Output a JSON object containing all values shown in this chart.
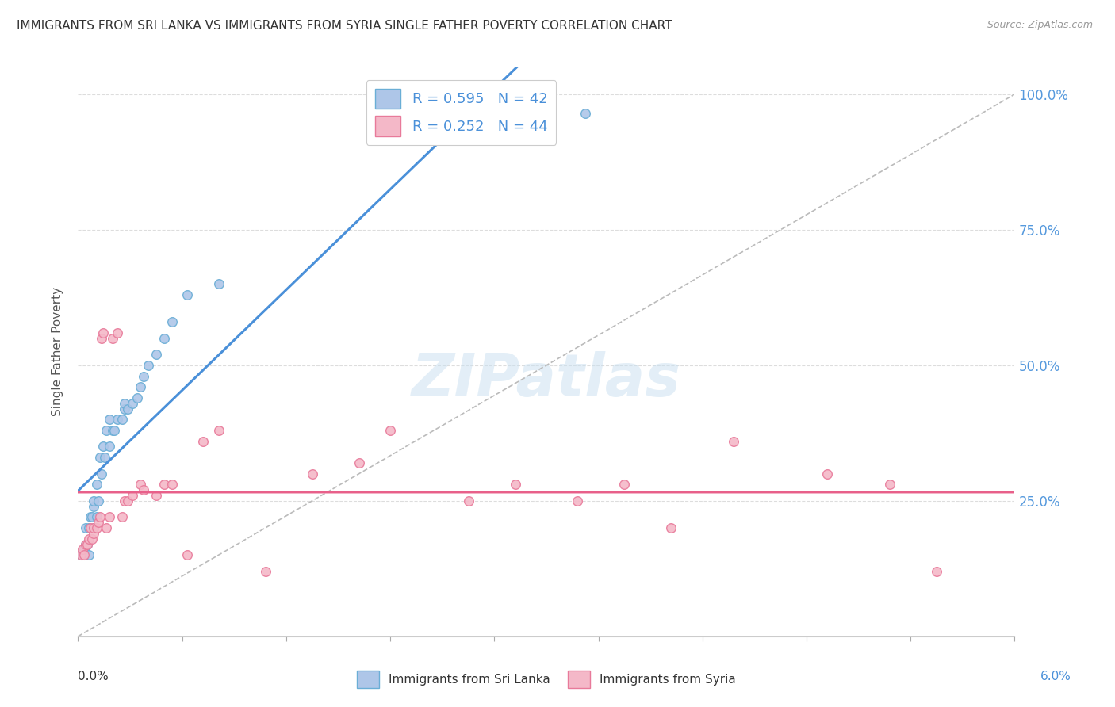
{
  "title": "IMMIGRANTS FROM SRI LANKA VS IMMIGRANTS FROM SYRIA SINGLE FATHER POVERTY CORRELATION CHART",
  "source": "Source: ZipAtlas.com",
  "ylabel": "Single Father Poverty",
  "legend1_r": "R = 0.595",
  "legend1_n": "N = 42",
  "legend2_r": "R = 0.252",
  "legend2_n": "N = 44",
  "legend_bottom1": "Immigrants from Sri Lanka",
  "legend_bottom2": "Immigrants from Syria",
  "color_sri_lanka_fill": "#aec6e8",
  "color_sri_lanka_edge": "#6aaed6",
  "color_syria_fill": "#f4b8c8",
  "color_syria_edge": "#e87a9a",
  "color_sri_lanka_line": "#4a90d9",
  "color_syria_line": "#e8608a",
  "color_diagonal": "#bbbbbb",
  "watermark": "ZIPatlas",
  "x_min": 0.0,
  "x_max": 0.06,
  "y_min": 0.0,
  "y_max": 1.05,
  "sri_lanka_x": [
    0.0002,
    0.0003,
    0.0004,
    0.0004,
    0.0005,
    0.0005,
    0.0006,
    0.0007,
    0.0007,
    0.0008,
    0.0009,
    0.001,
    0.001,
    0.001,
    0.0012,
    0.0012,
    0.0013,
    0.0014,
    0.0015,
    0.0016,
    0.0017,
    0.0018,
    0.002,
    0.002,
    0.0022,
    0.0023,
    0.0025,
    0.0028,
    0.003,
    0.003,
    0.0032,
    0.0035,
    0.0038,
    0.004,
    0.0042,
    0.0045,
    0.005,
    0.0055,
    0.006,
    0.007,
    0.009,
    0.0325
  ],
  "sri_lanka_y": [
    0.15,
    0.15,
    0.15,
    0.16,
    0.17,
    0.2,
    0.17,
    0.15,
    0.2,
    0.22,
    0.22,
    0.2,
    0.24,
    0.25,
    0.22,
    0.28,
    0.25,
    0.33,
    0.3,
    0.35,
    0.33,
    0.38,
    0.35,
    0.4,
    0.38,
    0.38,
    0.4,
    0.4,
    0.42,
    0.43,
    0.42,
    0.43,
    0.44,
    0.46,
    0.48,
    0.5,
    0.52,
    0.55,
    0.58,
    0.63,
    0.65,
    0.965
  ],
  "syria_x": [
    0.0002,
    0.0003,
    0.0004,
    0.0005,
    0.0006,
    0.0007,
    0.0008,
    0.0009,
    0.001,
    0.001,
    0.0012,
    0.0013,
    0.0014,
    0.0015,
    0.0016,
    0.0018,
    0.002,
    0.0022,
    0.0025,
    0.0028,
    0.003,
    0.0032,
    0.0035,
    0.004,
    0.0042,
    0.005,
    0.0055,
    0.006,
    0.007,
    0.008,
    0.009,
    0.012,
    0.015,
    0.018,
    0.02,
    0.025,
    0.028,
    0.032,
    0.035,
    0.038,
    0.042,
    0.048,
    0.052,
    0.055
  ],
  "syria_y": [
    0.15,
    0.16,
    0.15,
    0.17,
    0.17,
    0.18,
    0.2,
    0.18,
    0.19,
    0.2,
    0.2,
    0.21,
    0.22,
    0.55,
    0.56,
    0.2,
    0.22,
    0.55,
    0.56,
    0.22,
    0.25,
    0.25,
    0.26,
    0.28,
    0.27,
    0.26,
    0.28,
    0.28,
    0.15,
    0.36,
    0.38,
    0.12,
    0.3,
    0.32,
    0.38,
    0.25,
    0.28,
    0.25,
    0.28,
    0.2,
    0.36,
    0.3,
    0.28,
    0.12
  ],
  "figsize": [
    14.06,
    8.92
  ],
  "dpi": 100
}
